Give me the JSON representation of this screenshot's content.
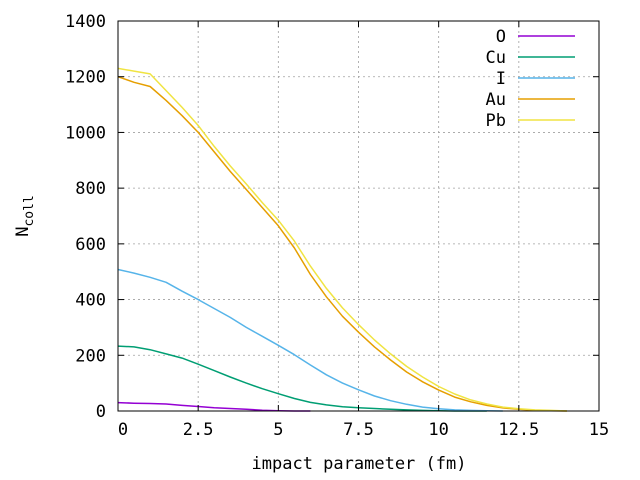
{
  "chart_data": {
    "type": "line",
    "title": "",
    "xlabel": "impact parameter (fm)",
    "ylabel_main": "N",
    "ylabel_sub": "coll",
    "xlim": [
      0,
      15
    ],
    "ylim": [
      0,
      1400
    ],
    "xticks": [
      {
        "value": 0,
        "label": "0"
      },
      {
        "value": 2.5,
        "label": "2.5"
      },
      {
        "value": 5,
        "label": "5"
      },
      {
        "value": 7.5,
        "label": "7.5"
      },
      {
        "value": 10,
        "label": "10"
      },
      {
        "value": 12.5,
        "label": "12.5"
      },
      {
        "value": 15,
        "label": "15"
      }
    ],
    "yticks": [
      {
        "value": 0,
        "label": "0"
      },
      {
        "value": 200,
        "label": "200"
      },
      {
        "value": 400,
        "label": "400"
      },
      {
        "value": 600,
        "label": "600"
      },
      {
        "value": 800,
        "label": "800"
      },
      {
        "value": 1000,
        "label": "1000"
      },
      {
        "value": 1200,
        "label": "1200"
      },
      {
        "value": 1400,
        "label": "1400"
      }
    ],
    "grid": true,
    "legend_position": "top-right",
    "series": [
      {
        "name": "O",
        "color": "#9400d3",
        "x": [
          0,
          0.5,
          1,
          1.5,
          2,
          2.5,
          3,
          3.5,
          4,
          4.5,
          5,
          5.5,
          6
        ],
        "y": [
          30,
          28,
          27,
          25,
          20,
          16,
          12,
          9,
          6,
          3,
          1,
          0,
          0
        ]
      },
      {
        "name": "Cu",
        "color": "#009e73",
        "x": [
          0,
          0.5,
          1,
          1.5,
          2,
          2.5,
          3,
          3.5,
          4,
          4.5,
          5,
          5.5,
          6,
          6.5,
          7,
          7.5,
          8,
          8.5,
          9,
          9.5,
          10,
          10.5,
          11,
          11.5
        ],
        "y": [
          233,
          230,
          220,
          205,
          190,
          168,
          145,
          122,
          100,
          80,
          62,
          45,
          31,
          22,
          15,
          12,
          9,
          6,
          4,
          2,
          1,
          0,
          0,
          0
        ]
      },
      {
        "name": "I",
        "color": "#56b4e9",
        "x": [
          0,
          0.5,
          1,
          1.5,
          2,
          2.5,
          3,
          3.5,
          4,
          4.5,
          5,
          5.5,
          6,
          6.5,
          7,
          7.5,
          8,
          8.5,
          9,
          9.5,
          10,
          10.5,
          11,
          11.5,
          12
        ],
        "y": [
          508,
          495,
          480,
          462,
          430,
          400,
          368,
          336,
          300,
          268,
          236,
          202,
          165,
          130,
          100,
          76,
          54,
          37,
          24,
          14,
          8,
          4,
          2,
          1,
          0
        ]
      },
      {
        "name": "Au",
        "color": "#e69f00",
        "x": [
          0,
          0.5,
          1,
          1.5,
          2,
          2.5,
          3,
          3.5,
          4,
          4.5,
          5,
          5.5,
          6,
          6.5,
          7,
          7.5,
          8,
          8.5,
          9,
          9.5,
          10,
          10.5,
          11,
          11.5,
          12,
          12.5,
          13,
          13.5,
          14
        ],
        "y": [
          1200,
          1180,
          1165,
          1115,
          1060,
          1000,
          930,
          860,
          795,
          730,
          665,
          585,
          490,
          410,
          340,
          283,
          230,
          183,
          140,
          105,
          75,
          50,
          33,
          20,
          11,
          6,
          3,
          1,
          0
        ]
      },
      {
        "name": "Pb",
        "color": "#f0e442",
        "x": [
          0,
          0.5,
          1,
          1.5,
          2,
          2.5,
          3,
          3.5,
          4,
          4.5,
          5,
          5.5,
          6,
          6.5,
          7,
          7.5,
          8,
          8.5,
          9,
          9.5,
          10,
          10.5,
          11,
          11.5,
          12,
          12.5,
          13,
          13.5,
          14
        ],
        "y": [
          1230,
          1220,
          1210,
          1150,
          1090,
          1025,
          950,
          880,
          815,
          748,
          685,
          610,
          520,
          440,
          370,
          310,
          255,
          205,
          160,
          122,
          88,
          61,
          40,
          25,
          14,
          8,
          4,
          2,
          0
        ]
      }
    ]
  }
}
